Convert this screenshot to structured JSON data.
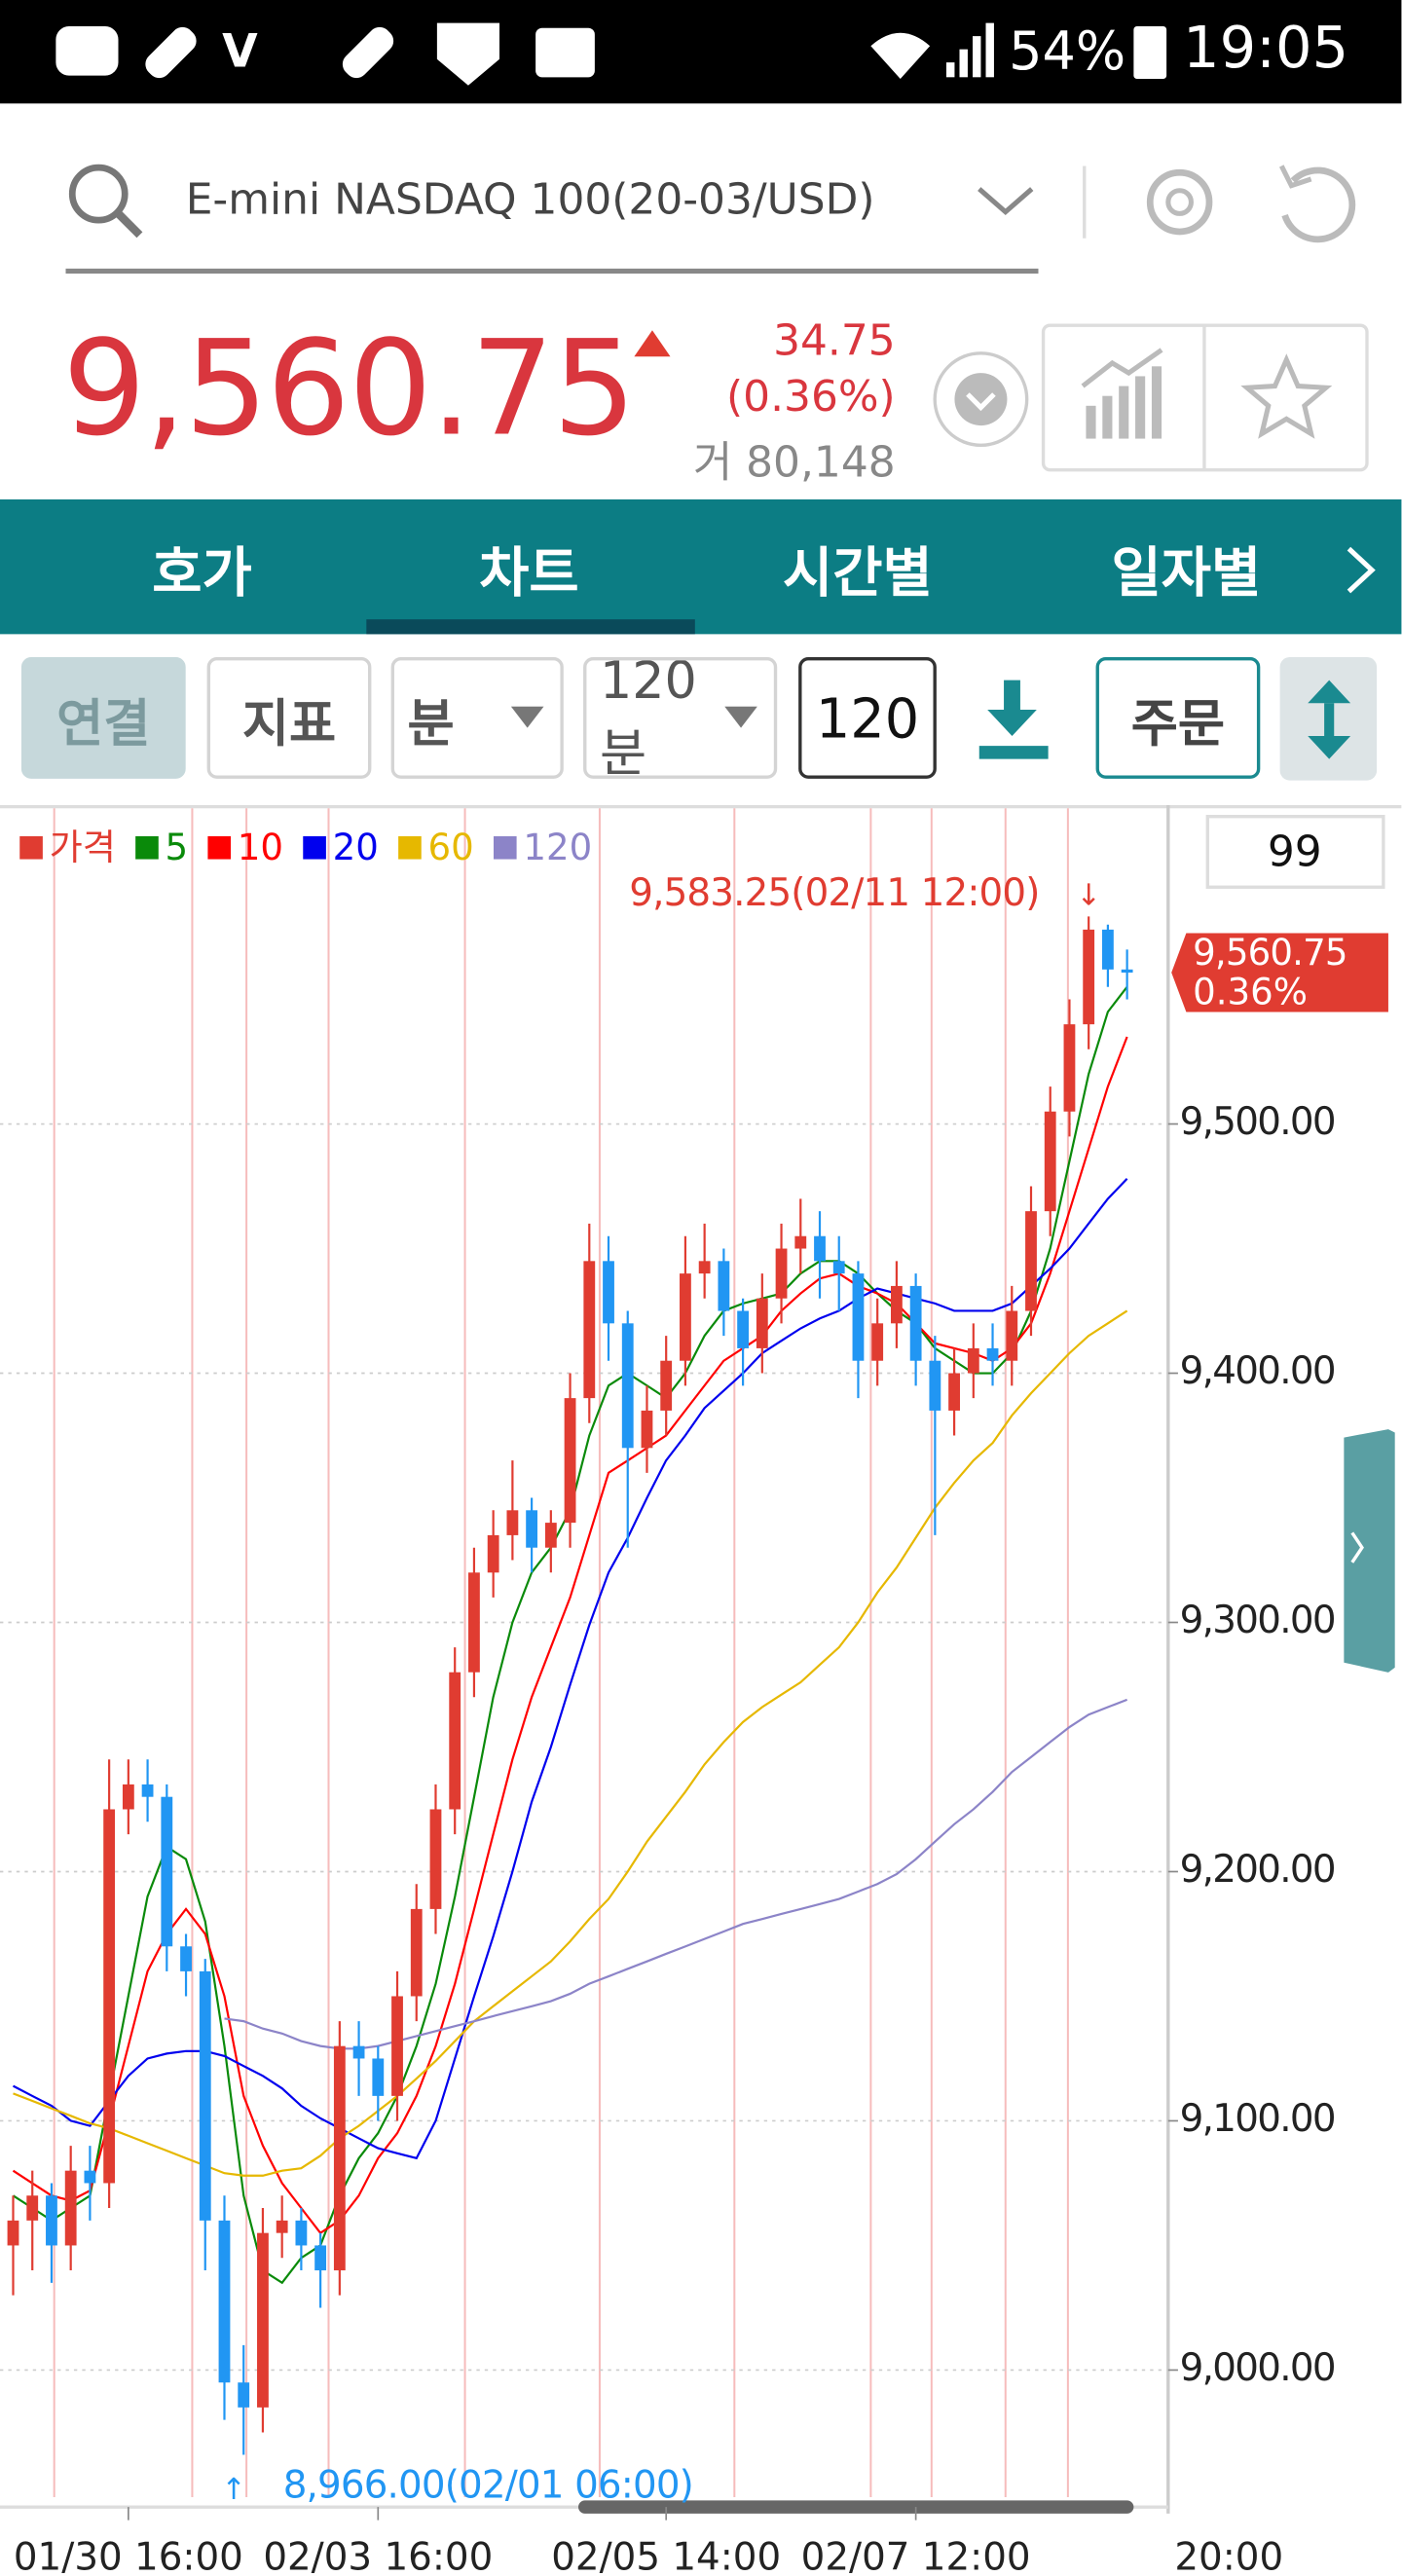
{
  "status_bar": {
    "battery": "54%",
    "time": "19:05"
  },
  "search": {
    "symbol": "E-mini NASDAQ 100(20-03/USD)"
  },
  "quote": {
    "price": "9,560.75",
    "change": "34.75",
    "change_pct": "(0.36%)",
    "volume": "거 80,148"
  },
  "tabs": [
    "호가",
    "차트",
    "시간별",
    "일자별"
  ],
  "toolbar": {
    "connect": "연결",
    "indicator": "지표",
    "unit": "분",
    "period": "120분",
    "count": "120",
    "order": "주문"
  },
  "chart_data": {
    "type": "candlestick",
    "price_name": "가격",
    "up_color": "#e03c31",
    "down_color": "#2196f3",
    "categories": [
      null,
      null,
      null,
      null,
      null,
      null,
      "01/30 16:00",
      null,
      null,
      null,
      null,
      null,
      null,
      null,
      null,
      null,
      null,
      null,
      null,
      "02/03 16:00",
      null,
      null,
      null,
      null,
      null,
      null,
      null,
      null,
      null,
      null,
      null,
      null,
      null,
      null,
      "02/05 14:00",
      null,
      null,
      null,
      null,
      null,
      null,
      null,
      null,
      null,
      null,
      null,
      null,
      "02/07 12:00",
      null,
      null,
      null,
      null,
      null,
      null,
      null,
      null,
      null,
      null,
      null
    ],
    "x_end_label": "20:00",
    "open": [
      9050,
      9060,
      9070,
      9050,
      9080,
      9075,
      9225,
      9235,
      9230,
      9170,
      9160,
      9060,
      8995,
      8985,
      9055,
      9060,
      9050,
      9040,
      9130,
      9125,
      9110,
      9150,
      9185,
      9225,
      9280,
      9320,
      9335,
      9345,
      9330,
      9340,
      9390,
      9445,
      9420,
      9370,
      9385,
      9405,
      9440,
      9445,
      9425,
      9410,
      9430,
      9450,
      9455,
      9445,
      9440,
      9405,
      9420,
      9435,
      9405,
      9385,
      9400,
      9410,
      9405,
      9425,
      9465,
      9505,
      9540,
      9578,
      9562
    ],
    "high": [
      9070,
      9080,
      9075,
      9090,
      9090,
      9245,
      9245,
      9245,
      9235,
      9175,
      9165,
      9070,
      9010,
      9065,
      9070,
      9065,
      9055,
      9140,
      9140,
      9130,
      9160,
      9195,
      9235,
      9290,
      9330,
      9345,
      9365,
      9350,
      9345,
      9400,
      9460,
      9455,
      9425,
      9395,
      9415,
      9455,
      9460,
      9450,
      9430,
      9440,
      9460,
      9470,
      9465,
      9455,
      9445,
      9430,
      9445,
      9440,
      9415,
      9410,
      9420,
      9420,
      9435,
      9475,
      9515,
      9550,
      9583.25,
      9580,
      9570
    ],
    "low": [
      9030,
      9040,
      9035,
      9040,
      9060,
      9065,
      9215,
      9220,
      9160,
      9150,
      9040,
      8980,
      8966,
      8975,
      9045,
      9040,
      9025,
      9030,
      9110,
      9100,
      9100,
      9140,
      9175,
      9215,
      9270,
      9310,
      9325,
      9320,
      9320,
      9330,
      9380,
      9405,
      9330,
      9360,
      9375,
      9395,
      9430,
      9415,
      9395,
      9400,
      9420,
      9440,
      9430,
      9425,
      9390,
      9395,
      9410,
      9395,
      9335,
      9375,
      9390,
      9395,
      9395,
      9415,
      9455,
      9495,
      9530,
      9555,
      9550
    ],
    "close": [
      9060,
      9070,
      9050,
      9080,
      9075,
      9225,
      9235,
      9230,
      9170,
      9160,
      9060,
      8995,
      8985,
      9055,
      9060,
      9050,
      9040,
      9130,
      9125,
      9110,
      9150,
      9185,
      9225,
      9280,
      9320,
      9335,
      9345,
      9330,
      9340,
      9390,
      9445,
      9420,
      9370,
      9385,
      9405,
      9440,
      9445,
      9425,
      9410,
      9430,
      9450,
      9455,
      9445,
      9440,
      9405,
      9420,
      9435,
      9405,
      9385,
      9400,
      9410,
      9405,
      9425,
      9465,
      9505,
      9540,
      9578,
      9562,
      9560.75
    ],
    "series": [
      {
        "name": "5",
        "color": "#0a8a0a",
        "values": [
          9070,
          9065,
          9060,
          9065,
          9070,
          9110,
          9150,
          9190,
          9210,
          9205,
          9180,
          9130,
          9070,
          9040,
          9035,
          9045,
          9050,
          9070,
          9085,
          9095,
          9110,
          9130,
          9155,
          9190,
          9230,
          9270,
          9300,
          9320,
          9330,
          9345,
          9375,
          9395,
          9400,
          9395,
          9390,
          9400,
          9415,
          9425,
          9428,
          9430,
          9432,
          9440,
          9445,
          9445,
          9440,
          9432,
          9425,
          9420,
          9410,
          9405,
          9400,
          9400,
          9408,
          9425,
          9450,
          9485,
          9520,
          9545,
          9555
        ]
      },
      {
        "name": "10",
        "color": "#ff0000",
        "values": [
          9080,
          9075,
          9070,
          9068,
          9072,
          9100,
          9130,
          9160,
          9175,
          9185,
          9175,
          9150,
          9110,
          9090,
          9075,
          9065,
          9055,
          9060,
          9070,
          9085,
          9095,
          9110,
          9130,
          9155,
          9185,
          9215,
          9245,
          9270,
          9290,
          9310,
          9335,
          9360,
          9365,
          9370,
          9375,
          9385,
          9395,
          9405,
          9410,
          9415,
          9425,
          9432,
          9438,
          9440,
          9435,
          9432,
          9428,
          9420,
          9412,
          9410,
          9408,
          9405,
          9410,
          9420,
          9440,
          9465,
          9490,
          9515,
          9535
        ]
      },
      {
        "name": "20",
        "color": "#0000ee",
        "values": [
          9114,
          9110,
          9106,
          9100,
          9098,
          9108,
          9118,
          9125,
          9127,
          9128,
          9128,
          9126,
          9122,
          9118,
          9113,
          9106,
          9101,
          9097,
          9093,
          9089,
          9087,
          9085,
          9100,
          9125,
          9150,
          9174,
          9200,
          9228,
          9250,
          9275,
          9299,
          9320,
          9334,
          9350,
          9365,
          9375,
          9386,
          9393,
          9400,
          9408,
          9413,
          9418,
          9422,
          9425,
          9430,
          9434,
          9432,
          9430,
          9428,
          9425,
          9425,
          9425,
          9428,
          9435,
          9442,
          9450,
          9460,
          9470,
          9478
        ]
      },
      {
        "name": "60",
        "color": "#e6b800",
        "values": [
          9111,
          9108,
          9105,
          9102,
          9099,
          9097,
          9094,
          9091,
          9088,
          9085,
          9082,
          9079,
          9078,
          9078,
          9080,
          9081,
          9086,
          9093,
          9098,
          9104,
          9110,
          9117,
          9124,
          9132,
          9140,
          9146,
          9152,
          9158,
          9164,
          9172,
          9181,
          9189,
          9200,
          9212,
          9222,
          9232,
          9243,
          9252,
          9260,
          9266,
          9271,
          9276,
          9283,
          9290,
          9300,
          9312,
          9322,
          9334,
          9346,
          9356,
          9365,
          9372,
          9383,
          9392,
          9400,
          9408,
          9415,
          9420,
          9425
        ]
      },
      {
        "name": "120",
        "color": "#8c84c8",
        "values": [
          null,
          null,
          null,
          null,
          null,
          null,
          null,
          null,
          null,
          null,
          null,
          9141,
          9140,
          9137,
          9135,
          9132,
          9130,
          9129,
          9129,
          9130,
          9132,
          9134,
          9136,
          9138,
          9140,
          9142,
          9144,
          9146,
          9148,
          9151,
          9155,
          9158,
          9161,
          9164,
          9167,
          9170,
          9173,
          9176,
          9179,
          9181,
          9183,
          9185,
          9187,
          9189,
          9192,
          9195,
          9199,
          9205,
          9212,
          9219,
          9225,
          9232,
          9240,
          9246,
          9252,
          9258,
          9263,
          9266,
          9269
        ]
      }
    ],
    "ylim": [
      8949,
      9628
    ],
    "yticks": [
      {
        "value": 9000,
        "label": "9,000.00"
      },
      {
        "value": 9100,
        "label": "9,100.00"
      },
      {
        "value": 9200,
        "label": "9,200.00"
      },
      {
        "value": 9300,
        "label": "9,300.00"
      },
      {
        "value": 9400,
        "label": "9,400.00"
      },
      {
        "value": 9500,
        "label": "9,500.00"
      }
    ],
    "grid": true,
    "max_label": "9,583.25(02/11 12:00)",
    "min_label": "8,966.00(02/01 06:00)",
    "last_label": "9,560.75",
    "last_pct": "0.36%",
    "count_box": "99"
  }
}
